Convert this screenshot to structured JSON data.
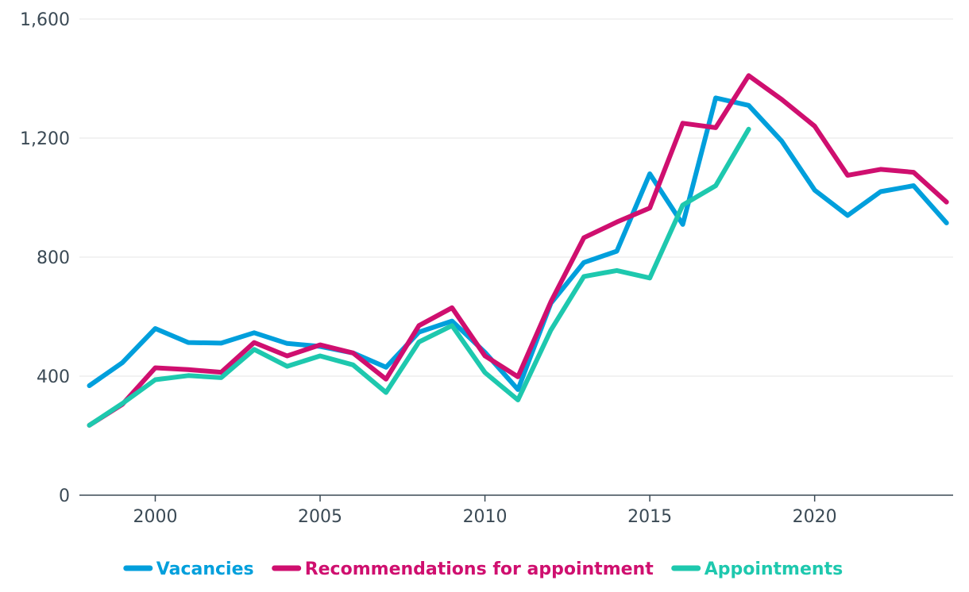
{
  "chart_data": {
    "type": "line",
    "x": [
      1998,
      1999,
      2000,
      2001,
      2002,
      2003,
      2004,
      2005,
      2006,
      2007,
      2008,
      2009,
      2010,
      2011,
      2012,
      2013,
      2014,
      2015,
      2016,
      2017,
      2018,
      2019,
      2020,
      2021,
      2022,
      2023,
      2024
    ],
    "series": [
      {
        "name": "Vacancies",
        "color": "#009fdc",
        "values": [
          368,
          445,
          560,
          513,
          511,
          546,
          510,
          500,
          478,
          430,
          548,
          585,
          480,
          355,
          645,
          782,
          820,
          1080,
          910,
          1335,
          1310,
          1190,
          1025,
          940,
          1020,
          1040,
          915
        ]
      },
      {
        "name": "Recommendations for appointment",
        "color": "#cf0f6f",
        "values": [
          235,
          305,
          428,
          422,
          413,
          513,
          468,
          505,
          478,
          390,
          570,
          630,
          468,
          398,
          650,
          865,
          918,
          965,
          1250,
          1235,
          1410,
          1330,
          1240,
          1075,
          1095,
          1085,
          985
        ]
      },
      {
        "name": "Appointments",
        "color": "#1ec8ae",
        "values": [
          235,
          308,
          388,
          402,
          395,
          490,
          433,
          468,
          438,
          345,
          515,
          570,
          412,
          320,
          555,
          735,
          755,
          730,
          975,
          1040,
          1230,
          null,
          null,
          null,
          null,
          null,
          null
        ]
      }
    ],
    "title": "",
    "xlabel": "",
    "ylabel": "",
    "xlim": [
      1997.7,
      2024.2
    ],
    "ylim": [
      0,
      1600
    ],
    "yticks": [
      0,
      400,
      800,
      1200,
      1600
    ],
    "ytick_labels": [
      "0",
      "400",
      "800",
      "1,200",
      "1,600"
    ],
    "xticks": [
      2000,
      2005,
      2010,
      2015,
      2020
    ],
    "xtick_labels": [
      "2000",
      "2005",
      "2010",
      "2015",
      "2020"
    ],
    "grid": true,
    "legend_position": "bottom-center"
  }
}
